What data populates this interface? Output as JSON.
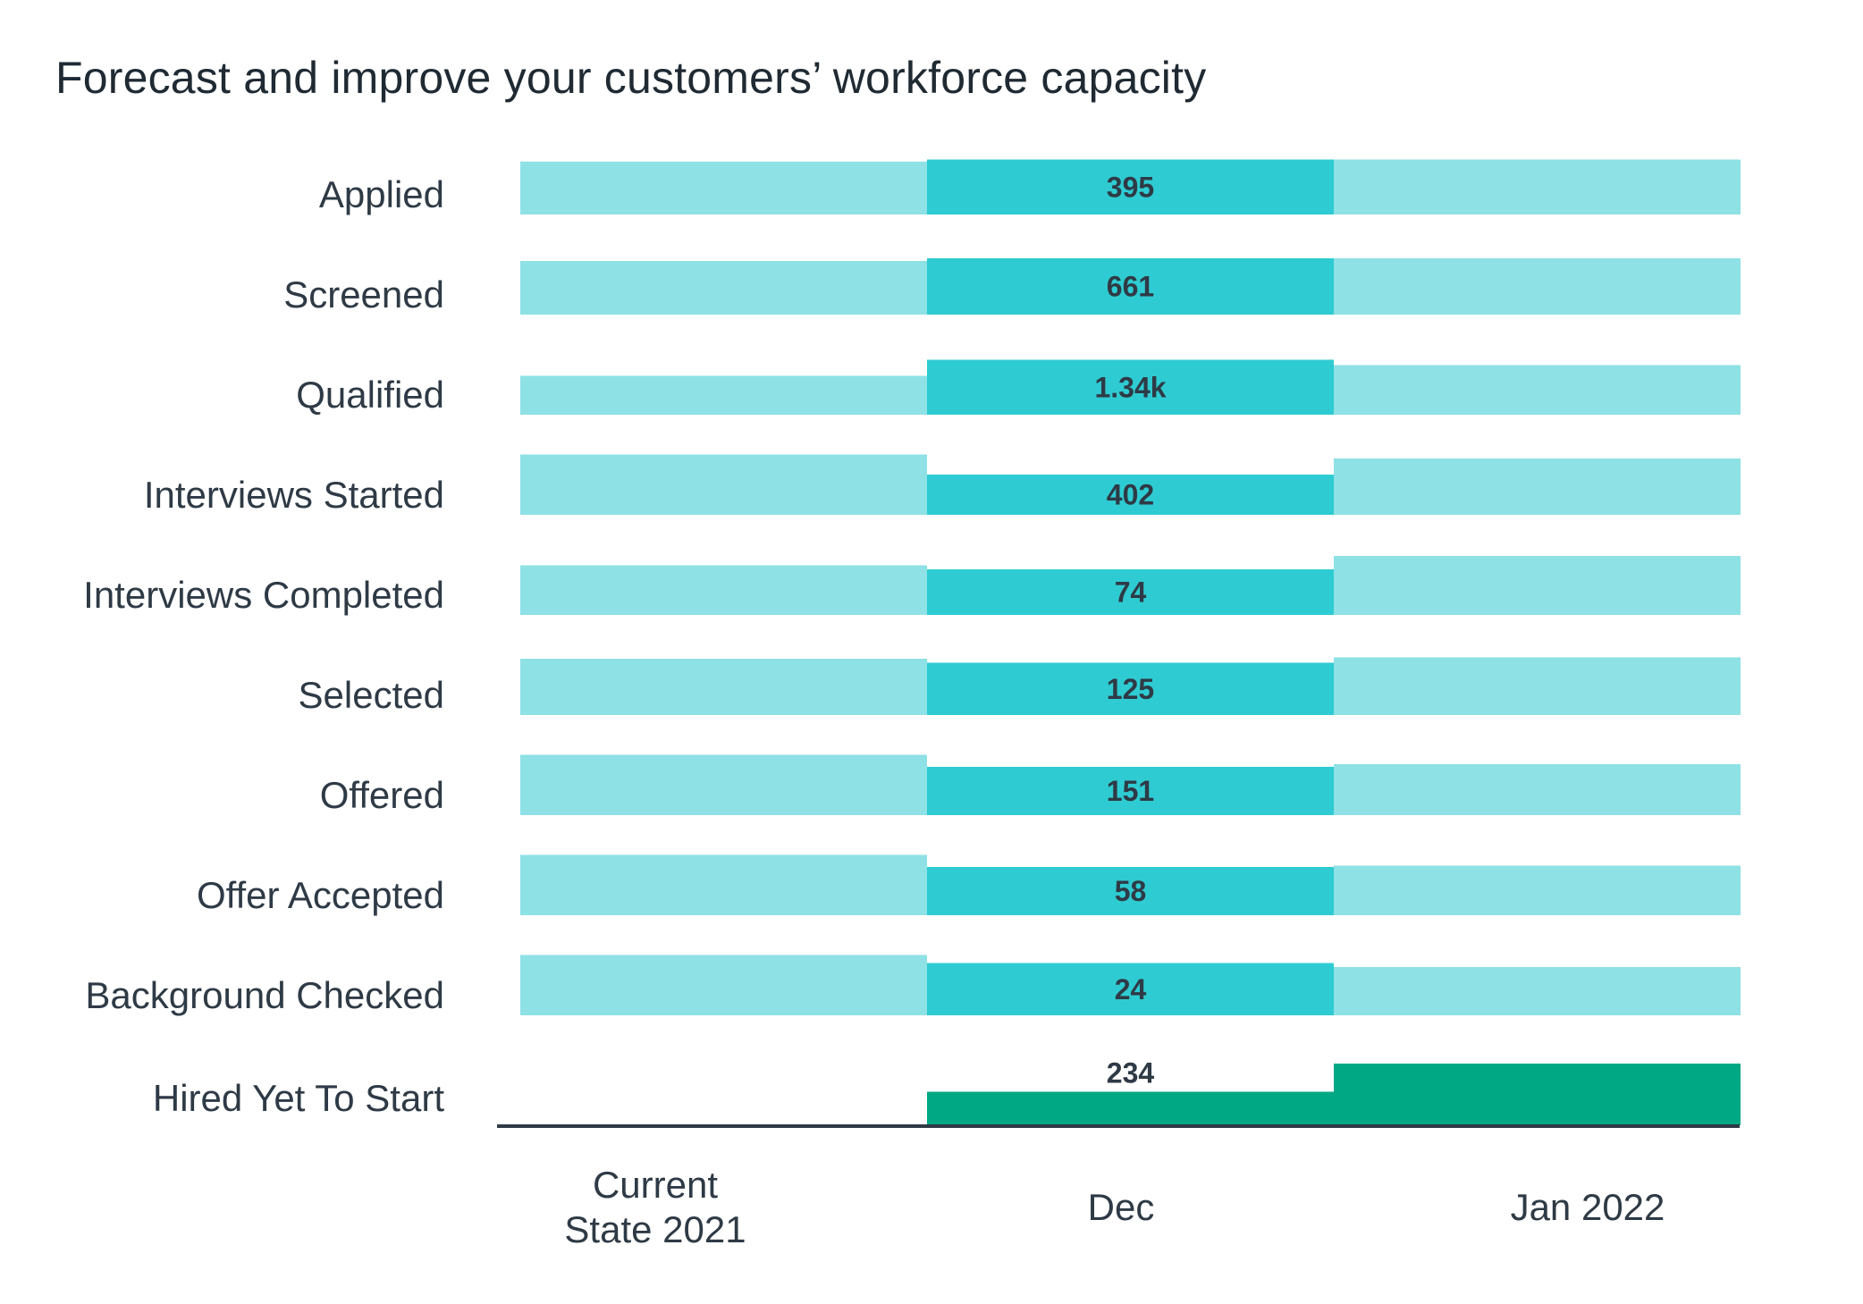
{
  "chart_data": {
    "type": "bar",
    "title": "Forecast and improve your customers’ workforce capacity",
    "layout": "stepped horizontal bands per stage across three periods",
    "periods": [
      "Current State 2021",
      "Dec",
      "Jan 2022"
    ],
    "period_labels": [
      [
        "Current",
        "State 2021"
      ],
      [
        "Dec"
      ],
      [
        "Jan 2022"
      ]
    ],
    "stages": [
      "Applied",
      "Screened",
      "Qualified",
      "Interviews Started",
      "Interviews Completed",
      "Selected",
      "Offered",
      "Offer Accepted",
      "Background Checked",
      "Hired Yet To Start"
    ],
    "value_labels": [
      "395",
      "661",
      "1.34k",
      "402",
      "74",
      "125",
      "151",
      "58",
      "24",
      "234"
    ],
    "series": [
      {
        "name": "Current State 2021",
        "values": [
          395,
          400,
          290,
          450,
          370,
          420,
          450,
          450,
          450,
          0
        ]
      },
      {
        "name": "Dec",
        "values": [
          410,
          420,
          410,
          300,
          340,
          390,
          360,
          360,
          390,
          250
        ]
      },
      {
        "name": "Jan 2022",
        "values": [
          410,
          420,
          370,
          420,
          440,
          430,
          380,
          370,
          360,
          460
        ]
      }
    ],
    "colors": {
      "current": "#8ee1e5",
      "dec": "#2ecbd2",
      "jan": "#8ee1e5",
      "hired": "#00a884",
      "axis": "#2e3a45"
    }
  }
}
